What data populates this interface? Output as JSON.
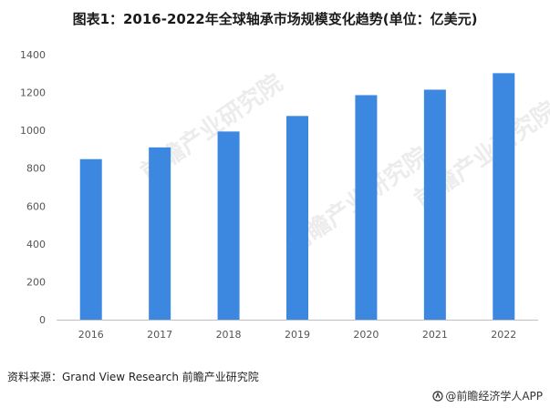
{
  "chart_data": {
    "type": "bar",
    "title": "图表1：2016-2022年全球轴承市场规模变化趋势(单位：亿美元)",
    "categories": [
      "2016",
      "2017",
      "2018",
      "2019",
      "2020",
      "2021",
      "2022"
    ],
    "values": [
      848,
      910,
      994,
      1076,
      1186,
      1215,
      1302
    ],
    "ylim": [
      0,
      1400
    ],
    "yticks": [
      0,
      200,
      400,
      600,
      800,
      1000,
      1200,
      1400
    ],
    "xlabel": "",
    "ylabel": "",
    "bar_color": "#3c87e0",
    "grid": false
  },
  "source": "资料来源：Grand View Research 前瞻产业研究院",
  "brand": "@前瞻经济学人APP",
  "watermark_text": "前瞻产业研究院"
}
